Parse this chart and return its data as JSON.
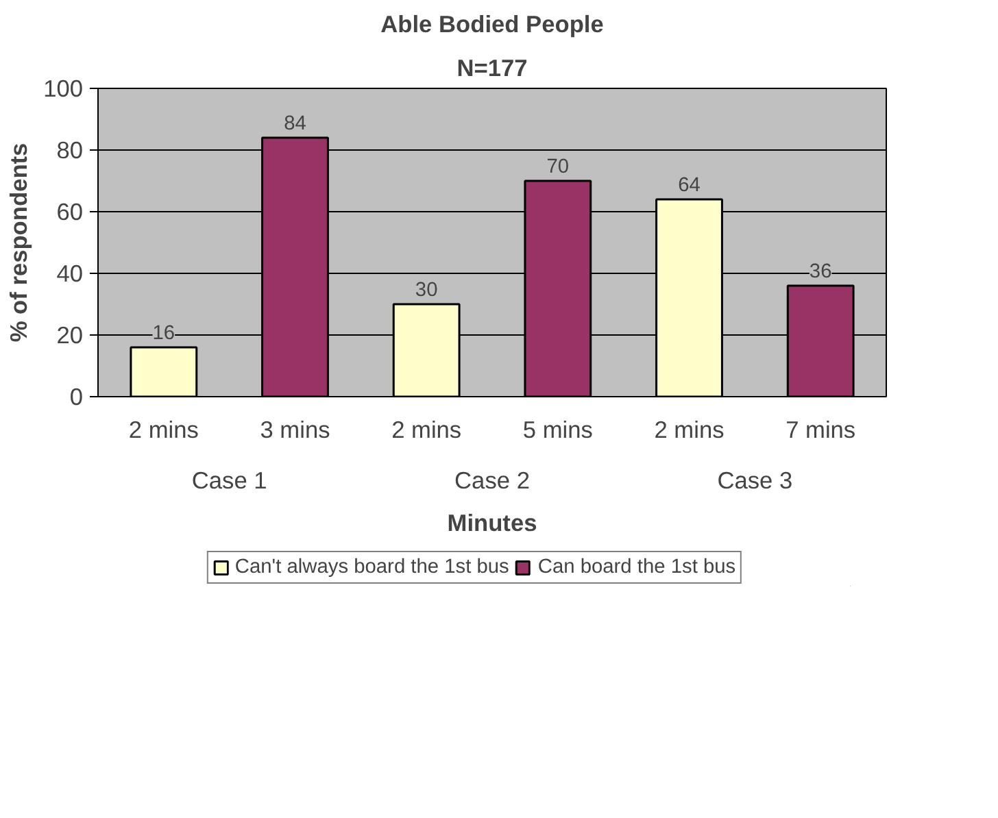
{
  "chart_data": {
    "type": "bar",
    "title": "Able Bodied People",
    "subtitle": "N=177",
    "xlabel": "Minutes",
    "ylabel": "% of respondents",
    "categories": [
      "2 mins",
      "3 mins",
      "2 mins",
      "5 mins",
      "2 mins",
      "7 mins"
    ],
    "annotations": [
      "Case 1",
      "Case 2",
      "Case 3"
    ],
    "series": [
      {
        "name": "Can't always board the 1st bus",
        "color": "#ffffcc",
        "values": [
          16,
          null,
          30,
          null,
          64,
          null
        ]
      },
      {
        "name": "Can board the 1st bus",
        "color": "#993366",
        "values": [
          null,
          84,
          null,
          70,
          null,
          36
        ]
      }
    ],
    "ylim": [
      0,
      100
    ],
    "yticks": [
      0,
      20,
      40,
      60,
      80,
      100
    ],
    "grid": "y",
    "data_labels": true,
    "legend": "bottom"
  }
}
